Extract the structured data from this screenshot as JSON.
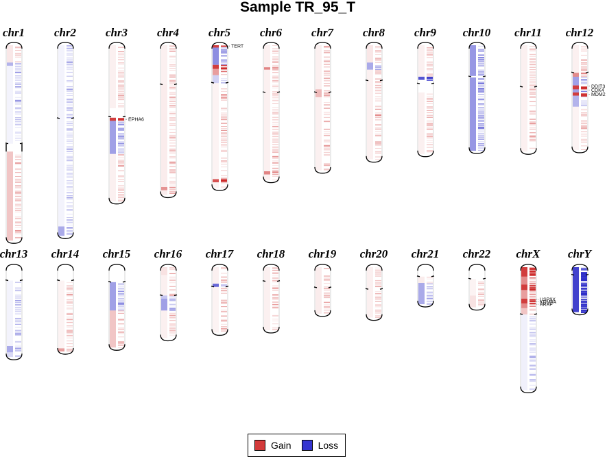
{
  "title": "Sample TR_95_T",
  "colors": {
    "gain": "#cc3333",
    "loss": "#2f2fcc",
    "gain_strong": "#aa0000",
    "loss_strong": "#0000aa"
  },
  "legend": {
    "gain_label": "Gain",
    "loss_label": "Loss"
  },
  "chromosomes": [
    {
      "name": "chr1",
      "length": 248,
      "centromere": 125,
      "segments": [
        [
          0,
          22,
          "g",
          0.12
        ],
        [
          22,
          26,
          "l",
          0.4
        ],
        [
          26,
          125,
          "l",
          0.06
        ],
        [
          135,
          248,
          "g",
          0.3
        ]
      ]
    },
    {
      "name": "chr2",
      "length": 242,
      "centromere": 93,
      "segments": [
        [
          0,
          230,
          "l",
          0.06
        ],
        [
          230,
          242,
          "l",
          0.45
        ]
      ]
    },
    {
      "name": "chr3",
      "length": 198,
      "centromere": 91,
      "segments": [
        [
          0,
          80,
          "g",
          0.08
        ],
        [
          92,
          96,
          "g",
          1.0
        ],
        [
          96,
          138,
          "l",
          0.5
        ],
        [
          138,
          198,
          "g",
          0.08
        ]
      ]
    },
    {
      "name": "chr4",
      "length": 190,
      "centromere": 50,
      "segments": [
        [
          0,
          50,
          "g",
          0.08
        ],
        [
          50,
          190,
          "g",
          0.1
        ],
        [
          180,
          184,
          "g",
          0.5
        ]
      ]
    },
    {
      "name": "chr5",
      "length": 181,
      "centromere": 48,
      "segments": [
        [
          0,
          3,
          "g",
          1.0
        ],
        [
          3,
          25,
          "l",
          0.6
        ],
        [
          25,
          30,
          "g",
          1.0
        ],
        [
          30,
          38,
          "g",
          0.5
        ],
        [
          38,
          48,
          "l",
          0.25
        ],
        [
          48,
          170,
          "g",
          0.06
        ],
        [
          170,
          174,
          "g",
          0.9
        ],
        [
          174,
          181,
          "g",
          0.06
        ]
      ]
    },
    {
      "name": "chr6",
      "length": 171,
      "centromere": 60,
      "segments": [
        [
          0,
          171,
          "g",
          0.08
        ],
        [
          28,
          31,
          "g",
          0.6
        ],
        [
          160,
          164,
          "g",
          0.6
        ]
      ]
    },
    {
      "name": "chr7",
      "length": 159,
      "centromere": 60,
      "segments": [
        [
          0,
          159,
          "g",
          0.08
        ],
        [
          56,
          66,
          "g",
          0.3
        ]
      ]
    },
    {
      "name": "chr8",
      "length": 145,
      "centromere": 45,
      "segments": [
        [
          0,
          22,
          "g",
          0.12
        ],
        [
          22,
          31,
          "l",
          0.45
        ],
        [
          31,
          145,
          "g",
          0.08
        ]
      ]
    },
    {
      "name": "chr9",
      "length": 138,
      "centromere": 49,
      "segments": [
        [
          0,
          40,
          "g",
          0.08
        ],
        [
          40,
          44,
          "l",
          0.9
        ],
        [
          60,
          138,
          "g",
          0.08
        ]
      ]
    },
    {
      "name": "chr10",
      "length": 134,
      "centromere": 40,
      "segments": [
        [
          0,
          39,
          "l",
          0.55
        ],
        [
          41,
          134,
          "l",
          0.55
        ]
      ]
    },
    {
      "name": "chr11",
      "length": 135,
      "centromere": 53,
      "segments": [
        [
          0,
          135,
          "g",
          0.08
        ]
      ]
    },
    {
      "name": "chr12",
      "length": 133,
      "centromere": 35,
      "segments": [
        [
          0,
          35,
          "g",
          0.08
        ],
        [
          35,
          40,
          "g",
          0.6
        ],
        [
          40,
          51,
          "l",
          0.5
        ],
        [
          51,
          56,
          "g",
          1.0
        ],
        [
          56,
          60,
          "l",
          0.5
        ],
        [
          60,
          64,
          "g",
          1.0
        ],
        [
          64,
          78,
          "l",
          0.4
        ],
        [
          78,
          133,
          "g",
          0.06
        ]
      ]
    },
    {
      "name": "chr13",
      "length": 114,
      "centromere": 17,
      "segments": [
        [
          17,
          100,
          "l",
          0.06
        ],
        [
          100,
          108,
          "l",
          0.45
        ],
        [
          108,
          114,
          "l",
          0.2
        ]
      ]
    },
    {
      "name": "chr14",
      "length": 107,
      "centromere": 17,
      "segments": [
        [
          17,
          103,
          "g",
          0.06
        ],
        [
          103,
          107,
          "g",
          0.5
        ]
      ]
    },
    {
      "name": "chr15",
      "length": 102,
      "centromere": 19,
      "segments": [
        [
          19,
          55,
          "l",
          0.5
        ],
        [
          55,
          102,
          "g",
          0.3
        ]
      ]
    },
    {
      "name": "chr16",
      "length": 90,
      "centromere": 36,
      "segments": [
        [
          0,
          10,
          "g",
          0.15
        ],
        [
          10,
          36,
          "g",
          0.08
        ],
        [
          36,
          40,
          "l",
          0.3
        ],
        [
          40,
          55,
          "l",
          0.5
        ],
        [
          55,
          90,
          "g",
          0.08
        ]
      ]
    },
    {
      "name": "chr17",
      "length": 83,
      "centromere": 25,
      "segments": [
        [
          0,
          21,
          "g",
          0.08
        ],
        [
          21,
          25,
          "l",
          0.8
        ],
        [
          25,
          83,
          "g",
          0.06
        ]
      ]
    },
    {
      "name": "chr18",
      "length": 80,
      "centromere": 18,
      "segments": [
        [
          0,
          80,
          "g",
          0.08
        ]
      ]
    },
    {
      "name": "chr19",
      "length": 59,
      "centromere": 26,
      "segments": [
        [
          0,
          59,
          "g",
          0.1
        ]
      ]
    },
    {
      "name": "chr20",
      "length": 64,
      "centromere": 28,
      "segments": [
        [
          0,
          64,
          "g",
          0.08
        ]
      ]
    },
    {
      "name": "chr21",
      "length": 47,
      "centromere": 12,
      "segments": [
        [
          12,
          20,
          "g",
          0.1
        ],
        [
          20,
          47,
          "l",
          0.45
        ]
      ]
    },
    {
      "name": "chr22",
      "length": 51,
      "centromere": 15,
      "segments": [
        [
          15,
          36,
          "g",
          0.06
        ],
        [
          36,
          51,
          "g",
          0.15
        ]
      ]
    },
    {
      "name": "chrX",
      "length": 156,
      "centromere": 60,
      "segments": [
        [
          0,
          12,
          "g",
          1.0
        ],
        [
          12,
          22,
          "g",
          0.6
        ],
        [
          22,
          29,
          "g",
          1.0
        ],
        [
          29,
          40,
          "g",
          0.5
        ],
        [
          40,
          46,
          "g",
          1.0
        ],
        [
          46,
          52,
          "g",
          0.6
        ],
        [
          52,
          60,
          "g",
          0.3
        ],
        [
          60,
          156,
          "l",
          0.08
        ]
      ]
    },
    {
      "name": "chrY",
      "length": 57,
      "centromere": 10,
      "segments": [
        [
          0,
          57,
          "l",
          1.0
        ]
      ]
    }
  ],
  "annotations": [
    {
      "chr": "chr3",
      "gene": "EPHA6",
      "pos": 94
    },
    {
      "chr": "chr5",
      "gene": "TERT",
      "pos": 1
    },
    {
      "chr": "chr12",
      "gene": "DDIT3",
      "pos": 52
    },
    {
      "chr": "chr12",
      "gene": "CDK4",
      "pos": 57
    },
    {
      "chr": "chr12",
      "gene": "MDM2",
      "pos": 62
    },
    {
      "chr": "chrX",
      "gene": "USP9X",
      "pos": 41
    },
    {
      "chr": "chrX",
      "gene": "KDM6A",
      "pos": 44
    },
    {
      "chr": "chrX",
      "gene": "ARAF",
      "pos": 47
    }
  ]
}
